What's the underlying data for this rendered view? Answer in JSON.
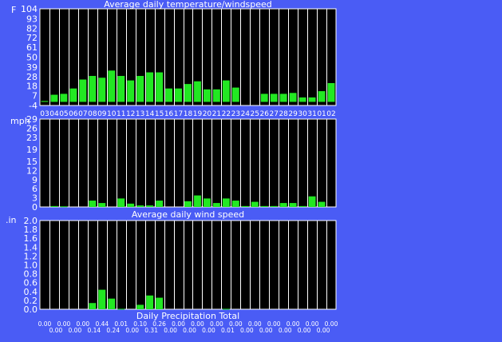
{
  "colors": {
    "background": "#4a5cf5",
    "plot": "#000000",
    "bar": "#22e822",
    "grid": "#ffffff",
    "text": "#ffffff"
  },
  "chart_data": [
    {
      "type": "bar",
      "title": "Average daily temperature/windspeed",
      "ylabel": "F",
      "ylim": [
        -4,
        104
      ],
      "yticks": [
        -4,
        7,
        18,
        28,
        39,
        50,
        61,
        72,
        82,
        93,
        104
      ],
      "categories": [
        "03",
        "04",
        "05",
        "06",
        "07",
        "08",
        "09",
        "10",
        "11",
        "12",
        "13",
        "14",
        "15",
        "16",
        "17",
        "18",
        "19",
        "20",
        "21",
        "22",
        "23",
        "24",
        "25",
        "26",
        "27",
        "28",
        "29",
        "30",
        "31",
        "01",
        "02"
      ],
      "values": [
        1,
        8,
        9,
        15,
        25,
        29,
        27,
        35,
        29,
        24,
        29,
        33,
        33,
        15,
        15,
        20,
        23,
        14,
        14,
        24,
        16,
        -1,
        -1,
        9,
        9,
        9,
        10,
        5,
        5,
        12,
        21
      ]
    },
    {
      "type": "bar",
      "title": "Average daily wind speed",
      "ylabel": "mph",
      "ylim": [
        0,
        29
      ],
      "yticks": [
        0,
        3,
        6,
        9,
        12,
        15,
        19,
        23,
        26,
        29
      ],
      "categories": [
        "03",
        "04",
        "05",
        "06",
        "07",
        "08",
        "09",
        "10",
        "11",
        "12",
        "13",
        "14",
        "15",
        "16",
        "17",
        "18",
        "19",
        "20",
        "21",
        "22",
        "23",
        "24",
        "25",
        "26",
        "27",
        "28",
        "29",
        "30",
        "31",
        "01",
        "02"
      ],
      "values": [
        0,
        0.3,
        0.2,
        0,
        0,
        2.1,
        1.3,
        0,
        2.8,
        1.1,
        0.5,
        0.5,
        2.1,
        0,
        0,
        1.9,
        3.8,
        2.8,
        1.3,
        2.8,
        2.1,
        0.3,
        1.7,
        0.3,
        0.3,
        1.3,
        1.3,
        0.3,
        3.5,
        1.7,
        0
      ]
    },
    {
      "type": "bar",
      "title": "Daily Precipitation Total",
      "ylabel": ".in",
      "ylim": [
        0,
        2
      ],
      "yticks": [
        "0.0",
        "0.2",
        "0.4",
        "0.6",
        "0.8",
        "1.0",
        "1.2",
        "1.4",
        "1.6",
        "1.8",
        "2.0"
      ],
      "categories": [
        "03",
        "04",
        "05",
        "06",
        "07",
        "08",
        "09",
        "10",
        "11",
        "12",
        "13",
        "14",
        "15",
        "16",
        "17",
        "18",
        "19",
        "20",
        "21",
        "22",
        "23",
        "24",
        "25",
        "26",
        "27",
        "28",
        "29",
        "30",
        "31",
        "01",
        "02"
      ],
      "values": [
        0,
        0,
        0,
        0,
        0,
        0.14,
        0.44,
        0.24,
        0.01,
        0,
        0.1,
        0.31,
        0.26,
        0,
        0,
        0,
        0,
        0,
        0,
        0.01,
        0,
        0,
        0,
        0,
        0,
        0,
        0,
        0,
        0,
        0,
        0
      ],
      "value_labels": [
        "0.00",
        "0.00",
        "0.00",
        "0.00",
        "0.00",
        "0.14",
        "0.44",
        "0.24",
        "0.01",
        "0.00",
        "0.10",
        "0.31",
        "0.26",
        "0.00",
        "0.00",
        "0.00",
        "0.00",
        "0.00",
        "0.00",
        "0.01",
        "0.00",
        "0.00",
        "0.00",
        "0.00",
        "0.00",
        "0.00",
        "0.00",
        "0.00",
        "0.00",
        "0.00",
        "0.00"
      ]
    }
  ]
}
